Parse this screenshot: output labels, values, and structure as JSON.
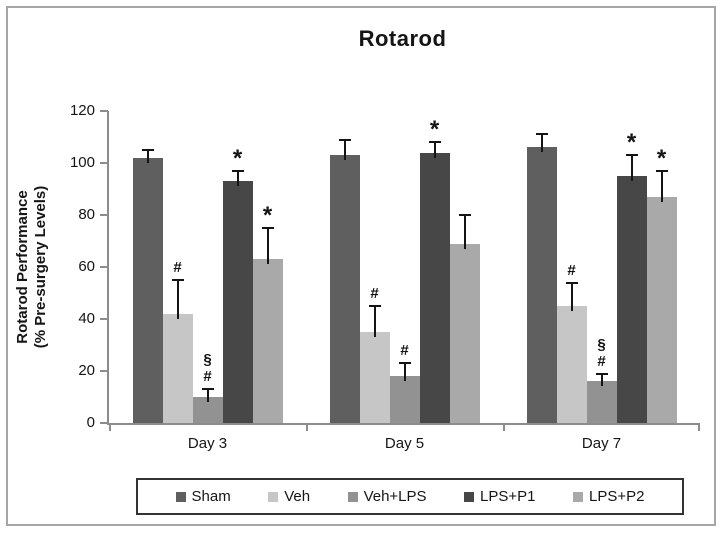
{
  "figure": {
    "ylabel_line1": "Rotarod Performance",
    "ylabel_line2": "(% Pre-surgery Levels)"
  },
  "chart_data": {
    "type": "bar",
    "title": "Rotarod",
    "xlabel": "",
    "ylabel": "Rotarod Performance (% Pre-surgery Levels)",
    "ylim": [
      0,
      120
    ],
    "yticks": [
      0,
      20,
      40,
      60,
      80,
      100,
      120
    ],
    "categories": [
      "Day 3",
      "Day 5",
      "Day 7"
    ],
    "grid": false,
    "legend_position": "bottom",
    "error_bars": "upper",
    "axis_color": "#8c8c8c",
    "annotation_color": "#141414",
    "series": [
      {
        "name": "Sham",
        "color": "#5f5f5f",
        "values": [
          102,
          103,
          106
        ],
        "errors": [
          3,
          6,
          5
        ],
        "annotations": [
          [],
          [],
          []
        ]
      },
      {
        "name": "Veh",
        "color": "#c6c6c6",
        "values": [
          42,
          35,
          45
        ],
        "errors": [
          13,
          10,
          9
        ],
        "annotations": [
          [
            "#"
          ],
          [
            "#"
          ],
          [
            "#"
          ]
        ]
      },
      {
        "name": "Veh+LPS",
        "color": "#929292",
        "values": [
          10,
          18,
          16
        ],
        "errors": [
          3,
          5,
          3
        ],
        "annotations": [
          [
            "§",
            "#"
          ],
          [
            "#"
          ],
          [
            "§",
            "#"
          ]
        ]
      },
      {
        "name": "LPS+P1",
        "color": "#474747",
        "values": [
          93,
          104,
          95
        ],
        "errors": [
          4,
          4,
          8
        ],
        "annotations": [
          [
            "*"
          ],
          [
            "*"
          ],
          [
            "*"
          ]
        ]
      },
      {
        "name": "LPS+P2",
        "color": "#a9a9a9",
        "values": [
          63,
          69,
          87
        ],
        "errors": [
          12,
          11,
          10
        ],
        "annotations": [
          [
            "*"
          ],
          [],
          [
            "*"
          ]
        ]
      }
    ]
  }
}
